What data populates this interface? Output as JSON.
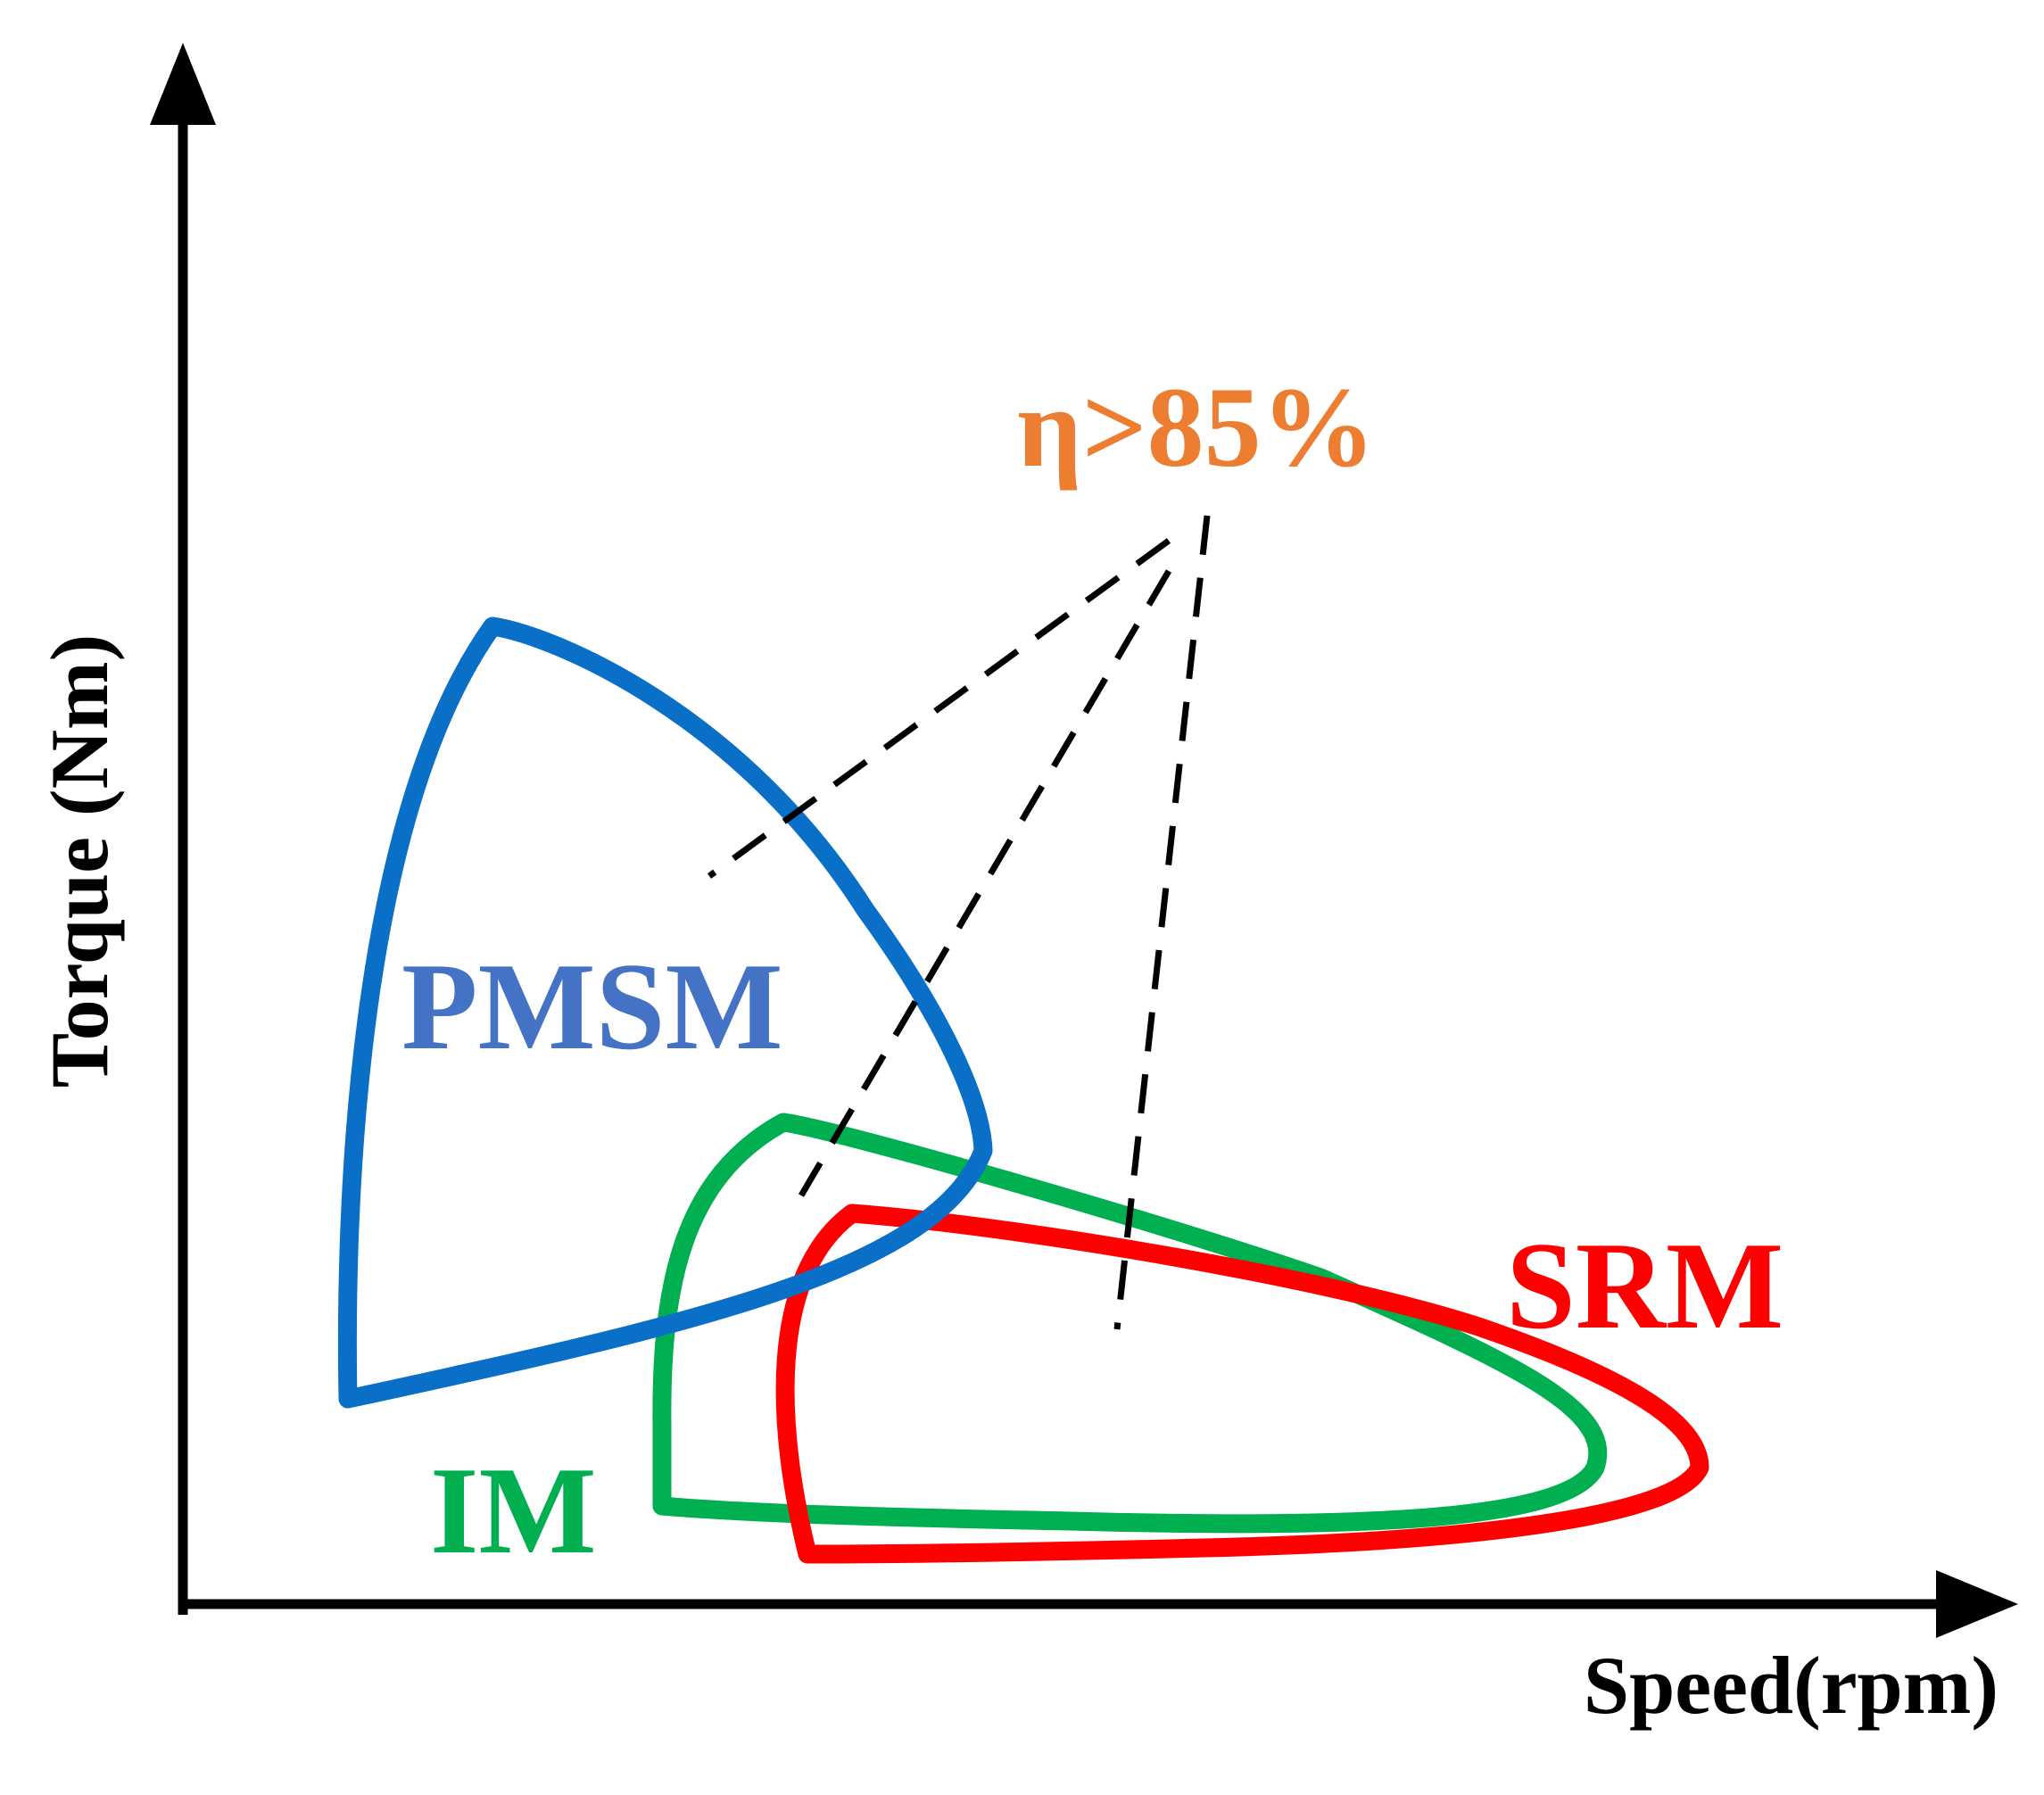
{
  "axes": {
    "x_label": "Speed(rpm)",
    "y_label": "Torque (Nm)"
  },
  "regions": [
    {
      "id": "pmsm",
      "label": "PMSM",
      "stroke_color": "#0A6FC6",
      "label_color": "#4472C4"
    },
    {
      "id": "im",
      "label": "IM",
      "stroke_color": "#00B050",
      "label_color": "#00B050"
    },
    {
      "id": "srm",
      "label": "SRM",
      "stroke_color": "#FF0000",
      "label_color": "#FF0000"
    }
  ],
  "annotation": {
    "text": "η>85%",
    "color": "#ED7D31",
    "pointer_style": "dashed",
    "pointer_color": "#000000"
  }
}
